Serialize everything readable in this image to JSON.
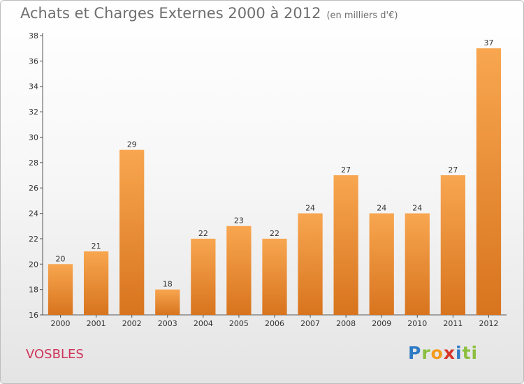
{
  "header": {
    "title": "Achats et Charges Externes 2000 à 2012",
    "unit": "(en milliers d'€)"
  },
  "footer": {
    "commune": "VOSBLES",
    "logo_letters": [
      "P",
      "r",
      "o",
      "x",
      "i",
      "ti"
    ]
  },
  "colors": {
    "bar_light": "#f8a650",
    "bar_dark": "#d8741e",
    "commune_text": "#d0345a"
  },
  "chart_data": {
    "type": "bar",
    "title": "Achats et Charges Externes 2000 à 2012",
    "subtitle": "(en milliers d'€)",
    "categories": [
      "2000",
      "2001",
      "2002",
      "2003",
      "2004",
      "2005",
      "2006",
      "2007",
      "2008",
      "2009",
      "2010",
      "2011",
      "2012"
    ],
    "values": [
      20,
      21,
      29,
      18,
      22,
      23,
      22,
      24,
      27,
      24,
      24,
      27,
      37
    ],
    "ylim": [
      16,
      38
    ],
    "yticks": [
      16,
      18,
      20,
      22,
      24,
      26,
      28,
      30,
      32,
      34,
      36,
      38
    ],
    "grid": false,
    "legend": "none"
  }
}
